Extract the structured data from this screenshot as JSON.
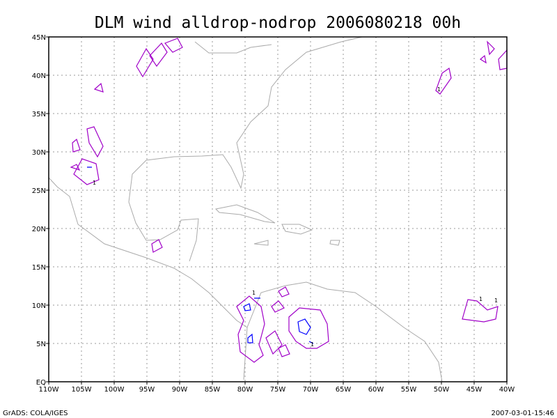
{
  "title": "DLM wind alldrop-nodrop 2006080218 00h",
  "x_tick_labels": [
    "110W",
    "105W",
    "100W",
    "95W",
    "90W",
    "85W",
    "80W",
    "75W",
    "70W",
    "65W",
    "60W",
    "55W",
    "50W",
    "45W",
    "40W"
  ],
  "y_tick_labels": [
    "EQ",
    "5N",
    "10N",
    "15N",
    "20N",
    "25N",
    "30N",
    "35N",
    "40N",
    "45N"
  ],
  "contour_labels": [
    "1",
    "1",
    "1",
    "1",
    "1",
    "1"
  ],
  "footer_left": "GrADS: COLA/IGES",
  "footer_right": "2007-03-01-15:46"
}
